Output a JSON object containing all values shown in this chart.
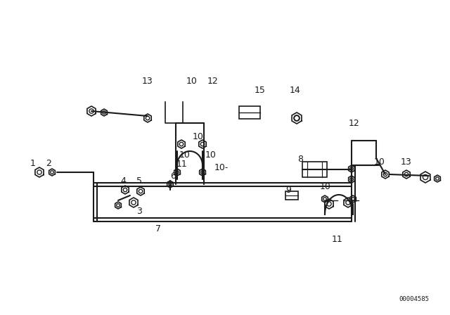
{
  "bg_color": "#ffffff",
  "line_color": "#1a1a1a",
  "text_color": "#1a1a1a",
  "part_number": "00004585",
  "figsize": [
    6.4,
    4.48
  ],
  "dpi": 100
}
